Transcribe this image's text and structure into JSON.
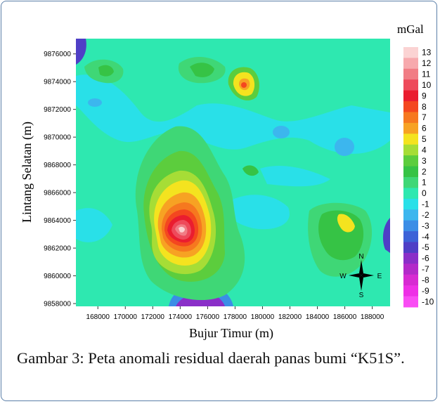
{
  "chart_data": {
    "type": "heatmap",
    "unit_label": "mGal",
    "xlabel": "Bujur Timur (m)",
    "ylabel": "Lintang Selatan (m)",
    "x_ticks": [
      168000,
      170000,
      172000,
      174000,
      176000,
      178000,
      180000,
      182000,
      184000,
      186000,
      188000
    ],
    "y_ticks": [
      9858000,
      9860000,
      9862000,
      9864000,
      9866000,
      9868000,
      9870000,
      9872000,
      9874000,
      9876000
    ],
    "xlim": [
      166400,
      189300
    ],
    "ylim": [
      9857800,
      9877100
    ],
    "colorbar": {
      "levels": [
        13,
        12,
        11,
        10,
        9,
        8,
        7,
        6,
        5,
        4,
        3,
        2,
        1,
        0,
        -1,
        -2,
        -3,
        -4,
        -5,
        -6,
        -7,
        -8,
        -9,
        -10
      ],
      "colors": [
        "#fbd3d3",
        "#f7a9ad",
        "#f17d85",
        "#ee4a5b",
        "#ea1d2f",
        "#f4471f",
        "#f6781f",
        "#f7a223",
        "#f4e31f",
        "#a6dd36",
        "#5ccd3d",
        "#36c345",
        "#3fd776",
        "#2ee8b0",
        "#29e0e8",
        "#3cb6ee",
        "#3b8de6",
        "#3c62d7",
        "#4f3fc6",
        "#8a2fc8",
        "#b32ac9",
        "#d72ad2",
        "#ee2fe6",
        "#f94cf4"
      ]
    },
    "anomalies": [
      {
        "x": 174200,
        "y": 9863000,
        "value": 13
      },
      {
        "x": 178700,
        "y": 9873700,
        "value": 7
      },
      {
        "x": 168300,
        "y": 9874800,
        "value": 3
      },
      {
        "x": 174800,
        "y": 9874600,
        "value": 2
      },
      {
        "x": 185800,
        "y": 9863800,
        "value": 5
      },
      {
        "x": 185900,
        "y": 9869300,
        "value": -3
      },
      {
        "x": 181200,
        "y": 9870300,
        "value": -3
      },
      {
        "x": 175300,
        "y": 9857900,
        "value": -7
      },
      {
        "x": 188900,
        "y": 9863000,
        "value": -6
      },
      {
        "x": 166500,
        "y": 9876300,
        "value": -5
      }
    ],
    "north_arrow": {
      "n": "N",
      "s": "S",
      "e": "E",
      "w": "W"
    }
  },
  "caption": "Gambar 3: Peta anomali residual daerah panas bumi “K51S”."
}
